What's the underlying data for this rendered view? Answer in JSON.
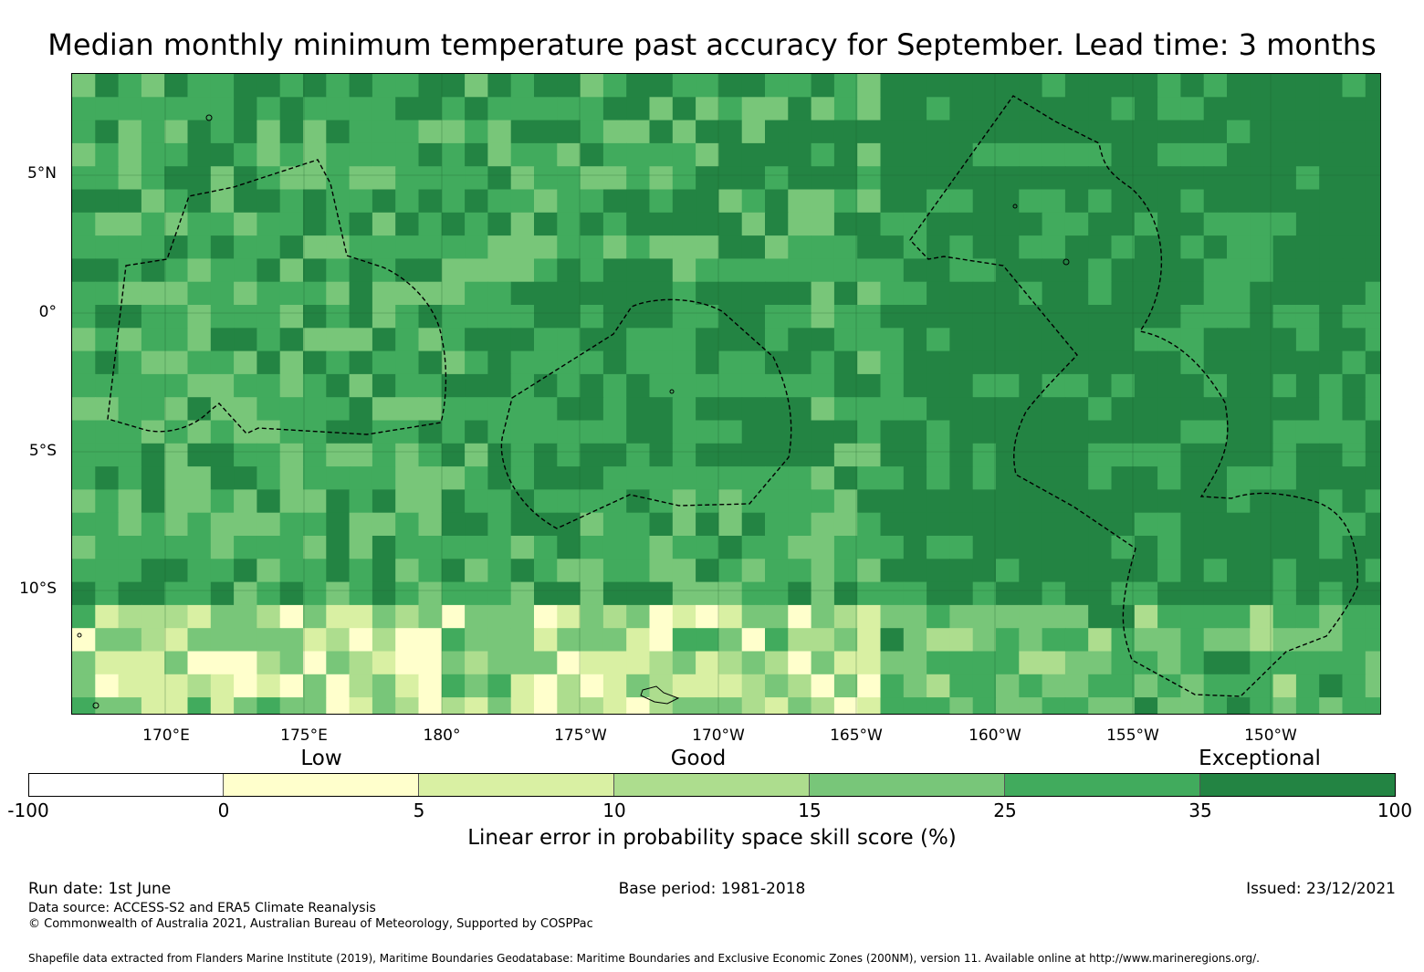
{
  "title": "Median monthly minimum temperature past accuracy for September. Lead time: 3 months",
  "map": {
    "lat_labels": [
      "5°N",
      "0°",
      "5°S",
      "10°S"
    ],
    "lon_labels": [
      "170°E",
      "175°E",
      "180°",
      "175°W",
      "170°W",
      "165°W",
      "160°W",
      "155°W",
      "150°W"
    ],
    "colors": {
      "below_0": "#ffffff",
      "0_5": "#ffffcc",
      "5_10": "#d9f0a3",
      "10_15": "#addd8e",
      "15_25": "#78c679",
      "25_35": "#41ab5d",
      "35_100": "#238443"
    }
  },
  "legend": {
    "categories": [
      "Low",
      "Good",
      "Exceptional"
    ],
    "ticks": [
      "-100",
      "0",
      "5",
      "10",
      "15",
      "25",
      "35",
      "100"
    ],
    "label": "Linear error in probability space skill score (%)"
  },
  "footer": {
    "run_date": "Run date: 1st June",
    "base_period": "Base period: 1981-2018",
    "issued": "Issued: 23/12/2021",
    "data_source": "Data source: ACCESS-S2 and ERA5 Climate Reanalysis",
    "copyright": "© Commonwealth of Australia 2021, Australian Bureau of Meteorology, Supported by COSPPac",
    "shapefile": "Shapefile data extracted from Flanders Marine Institute (2019), Maritime Boundaries Geodatabase: Maritime Boundaries and Exclusive Economic Zones (200NM), version 11. Available online at http://www.marineregions.org/."
  }
}
